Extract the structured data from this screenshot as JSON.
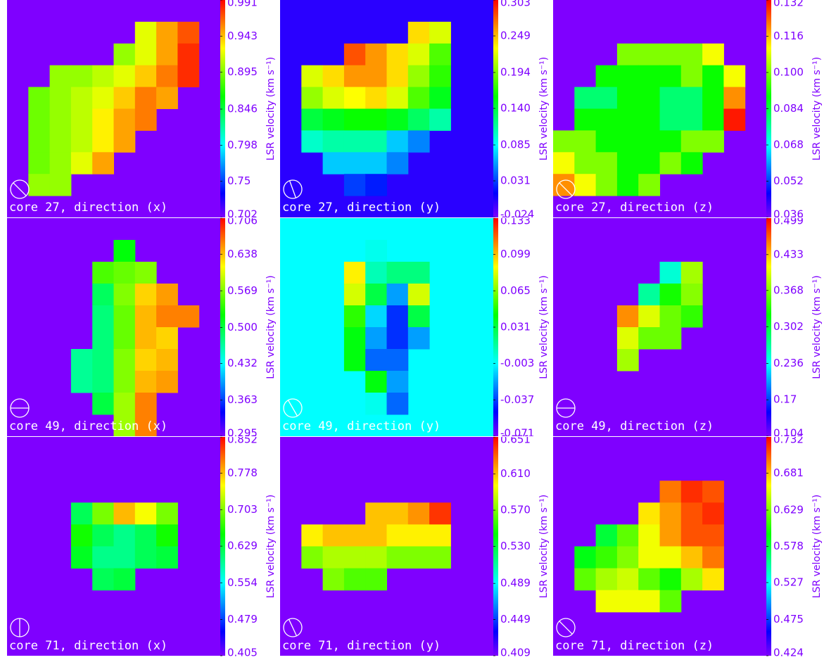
{
  "chart_data": [
    {
      "type": "heatmap",
      "title": "core 27, direction (x)",
      "colorbar_label": "LSR velocity (km s⁻¹)",
      "background": "#7f00ff",
      "vlim": [
        0.702,
        0.991
      ],
      "vticks": [
        0.702,
        0.75,
        0.798,
        0.846,
        0.895,
        0.943,
        0.991
      ],
      "z": [
        [
          null,
          null,
          null,
          null,
          null,
          null,
          null,
          null,
          null,
          null
        ],
        [
          null,
          null,
          null,
          null,
          null,
          null,
          0.92,
          0.95,
          0.97,
          null
        ],
        [
          null,
          null,
          null,
          null,
          null,
          0.9,
          0.92,
          0.95,
          0.98,
          null
        ],
        [
          null,
          null,
          0.9,
          0.9,
          0.91,
          0.92,
          0.94,
          0.96,
          0.98,
          null
        ],
        [
          null,
          0.89,
          0.9,
          0.91,
          0.92,
          0.94,
          0.96,
          0.95,
          null,
          null
        ],
        [
          null,
          0.89,
          0.9,
          0.91,
          0.93,
          0.95,
          0.96,
          null,
          null,
          null
        ],
        [
          null,
          0.89,
          0.9,
          0.91,
          0.93,
          0.95,
          null,
          null,
          null,
          null
        ],
        [
          null,
          0.89,
          0.9,
          0.92,
          0.95,
          null,
          null,
          null,
          null,
          null
        ],
        [
          null,
          0.9,
          0.9,
          null,
          null,
          null,
          null,
          null,
          null,
          null
        ],
        [
          null,
          null,
          null,
          null,
          null,
          null,
          null,
          null,
          null,
          null
        ]
      ]
    },
    {
      "type": "heatmap",
      "title": "core 27, direction (y)",
      "colorbar_label": "LSR velocity (km s⁻¹)",
      "background": "#2a00ff",
      "vlim": [
        -0.024,
        0.303
      ],
      "vticks": [
        -0.024,
        0.031,
        0.085,
        {
          "value": 0.14,
          "label": "0.140"
        },
        0.194,
        0.249,
        0.303
      ],
      "z": [
        [
          null,
          null,
          null,
          null,
          null,
          null,
          null,
          null,
          null,
          null
        ],
        [
          null,
          null,
          null,
          null,
          null,
          null,
          0.24,
          0.22,
          null,
          null
        ],
        [
          null,
          null,
          null,
          0.28,
          0.26,
          0.24,
          0.22,
          0.18,
          null,
          null
        ],
        [
          null,
          0.22,
          0.24,
          0.26,
          0.26,
          0.24,
          0.2,
          0.17,
          null,
          null
        ],
        [
          null,
          0.2,
          0.22,
          0.23,
          0.24,
          0.22,
          0.18,
          0.15,
          null,
          null
        ],
        [
          null,
          0.14,
          0.15,
          0.16,
          0.16,
          0.15,
          0.13,
          0.11,
          null,
          null
        ],
        [
          null,
          0.1,
          0.11,
          0.11,
          0.11,
          0.07,
          0.05,
          null,
          null,
          null
        ],
        [
          null,
          null,
          0.07,
          0.07,
          0.07,
          0.05,
          null,
          null,
          null,
          null
        ],
        [
          null,
          null,
          null,
          0.03,
          0.02,
          null,
          null,
          null,
          null,
          null
        ],
        [
          null,
          null,
          null,
          null,
          null,
          null,
          null,
          null,
          null,
          null
        ]
      ]
    },
    {
      "type": "heatmap",
      "title": "core 27, direction (z)",
      "colorbar_label": "LSR velocity (km s⁻¹)",
      "background": "#7f00ff",
      "vlim": [
        0.036,
        0.132
      ],
      "vticks": [
        0.036,
        0.052,
        0.068,
        0.084,
        {
          "value": 0.1,
          "label": "0.100"
        },
        0.116,
        0.132
      ],
      "z": [
        [
          null,
          null,
          null,
          null,
          null,
          null,
          null,
          null,
          null,
          null
        ],
        [
          null,
          null,
          null,
          null,
          null,
          null,
          null,
          null,
          null,
          null
        ],
        [
          null,
          null,
          null,
          0.1,
          0.1,
          0.1,
          0.1,
          0.11,
          null,
          null
        ],
        [
          null,
          null,
          0.09,
          0.09,
          0.09,
          0.09,
          0.1,
          0.09,
          0.11,
          null
        ],
        [
          null,
          0.08,
          0.08,
          0.09,
          0.09,
          0.08,
          0.08,
          0.09,
          0.12,
          null
        ],
        [
          null,
          0.09,
          0.09,
          0.09,
          0.09,
          0.08,
          0.08,
          0.09,
          0.13,
          null
        ],
        [
          0.1,
          0.1,
          0.09,
          0.09,
          0.09,
          0.09,
          0.1,
          0.1,
          null,
          null
        ],
        [
          0.11,
          0.1,
          0.1,
          0.09,
          0.09,
          0.1,
          0.09,
          null,
          null,
          null
        ],
        [
          0.12,
          0.11,
          0.1,
          0.09,
          0.1,
          null,
          null,
          null,
          null,
          null
        ],
        [
          null,
          null,
          null,
          null,
          null,
          null,
          null,
          null,
          null,
          null
        ]
      ]
    },
    {
      "type": "heatmap",
      "title": "core 49, direction (x)",
      "colorbar_label": "LSR velocity (km s⁻¹)",
      "background": "#7f00ff",
      "vlim": [
        0.295,
        0.706
      ],
      "vticks": [
        0.295,
        0.363,
        0.432,
        {
          "value": 0.5,
          "label": "0.500"
        },
        0.569,
        0.638,
        0.706
      ],
      "z": [
        [
          null,
          null,
          null,
          null,
          null,
          null,
          null,
          null,
          null,
          null
        ],
        [
          null,
          null,
          null,
          null,
          null,
          0.52,
          null,
          null,
          null,
          null
        ],
        [
          null,
          null,
          null,
          null,
          0.55,
          0.56,
          0.57,
          null,
          null,
          null
        ],
        [
          null,
          null,
          null,
          null,
          0.49,
          0.57,
          0.63,
          0.65,
          null,
          null
        ],
        [
          null,
          null,
          null,
          null,
          0.48,
          0.56,
          0.64,
          0.66,
          0.66,
          null
        ],
        [
          null,
          null,
          null,
          null,
          0.48,
          0.56,
          0.64,
          0.63,
          null,
          null
        ],
        [
          null,
          null,
          null,
          0.47,
          0.48,
          0.57,
          0.63,
          0.64,
          null,
          null
        ],
        [
          null,
          null,
          null,
          0.47,
          0.48,
          0.57,
          0.64,
          0.65,
          null,
          null
        ],
        [
          null,
          null,
          null,
          null,
          0.5,
          0.58,
          0.66,
          null,
          null,
          null
        ],
        [
          null,
          null,
          null,
          null,
          null,
          0.58,
          0.66,
          null,
          null,
          null
        ]
      ]
    },
    {
      "type": "heatmap",
      "title": "core 49, direction (y)",
      "colorbar_label": "LSR velocity (km s⁻¹)",
      "background": "#00ffff",
      "vlim": [
        -0.071,
        0.133
      ],
      "vticks": [
        -0.071,
        -0.037,
        -0.003,
        0.031,
        0.065,
        0.099,
        0.133
      ],
      "z": [
        [
          null,
          null,
          null,
          null,
          null,
          null,
          null,
          null,
          null,
          null
        ],
        [
          null,
          null,
          null,
          null,
          0.0,
          null,
          null,
          null,
          null,
          null
        ],
        [
          null,
          null,
          null,
          0.09,
          0.01,
          0.02,
          0.02,
          null,
          null,
          null
        ],
        [
          null,
          null,
          null,
          0.08,
          0.03,
          -0.02,
          0.08,
          null,
          null,
          null
        ],
        [
          null,
          null,
          null,
          0.05,
          -0.01,
          -0.04,
          0.03,
          null,
          null,
          null
        ],
        [
          null,
          null,
          null,
          0.04,
          -0.02,
          -0.04,
          -0.02,
          null,
          null,
          null
        ],
        [
          null,
          null,
          null,
          0.04,
          -0.03,
          -0.03,
          null,
          null,
          null,
          null
        ],
        [
          null,
          null,
          null,
          null,
          0.04,
          -0.02,
          null,
          null,
          null,
          null
        ],
        [
          null,
          null,
          null,
          null,
          0.0,
          -0.03,
          null,
          null,
          null,
          null
        ],
        [
          null,
          null,
          null,
          null,
          null,
          null,
          null,
          null,
          null,
          null
        ]
      ]
    },
    {
      "type": "heatmap",
      "title": "core 49, direction (z)",
      "colorbar_label": "LSR velocity (km s⁻¹)",
      "background": "#7f00ff",
      "vlim": [
        0.104,
        0.499
      ],
      "vticks": [
        0.104,
        0.17,
        0.236,
        0.302,
        0.368,
        0.433,
        0.499
      ],
      "z": [
        [
          null,
          null,
          null,
          null,
          null,
          null,
          null,
          null,
          null,
          null
        ],
        [
          null,
          null,
          null,
          null,
          null,
          null,
          null,
          null,
          null,
          null
        ],
        [
          null,
          null,
          null,
          null,
          null,
          0.25,
          0.38,
          null,
          null,
          null
        ],
        [
          null,
          null,
          null,
          null,
          0.27,
          0.33,
          0.37,
          null,
          null,
          null
        ],
        [
          null,
          null,
          null,
          0.45,
          0.4,
          0.36,
          0.34,
          null,
          null,
          null
        ],
        [
          null,
          null,
          null,
          0.4,
          0.36,
          0.36,
          null,
          null,
          null,
          null
        ],
        [
          null,
          null,
          null,
          0.38,
          null,
          null,
          null,
          null,
          null,
          null
        ],
        [
          null,
          null,
          null,
          null,
          null,
          null,
          null,
          null,
          null,
          null
        ],
        [
          null,
          null,
          null,
          null,
          null,
          null,
          null,
          null,
          null,
          null
        ],
        [
          null,
          null,
          null,
          null,
          null,
          null,
          null,
          null,
          null,
          null
        ]
      ]
    },
    {
      "type": "heatmap",
      "title": "core 71, direction (x)",
      "colorbar_label": "LSR velocity (km s⁻¹)",
      "background": "#7f00ff",
      "vlim": [
        0.405,
        0.852
      ],
      "vticks": [
        0.405,
        0.479,
        0.554,
        0.629,
        0.703,
        0.778,
        0.852
      ],
      "z": [
        [
          null,
          null,
          null,
          null,
          null,
          null,
          null,
          null,
          null,
          null
        ],
        [
          null,
          null,
          null,
          null,
          null,
          null,
          null,
          null,
          null,
          null
        ],
        [
          null,
          null,
          null,
          null,
          null,
          null,
          null,
          null,
          null,
          null
        ],
        [
          null,
          null,
          null,
          0.62,
          0.7,
          0.78,
          0.75,
          0.7,
          null,
          null
        ],
        [
          null,
          null,
          null,
          0.66,
          0.62,
          0.6,
          0.62,
          0.66,
          null,
          null
        ],
        [
          null,
          null,
          null,
          0.64,
          0.6,
          0.6,
          0.62,
          0.63,
          null,
          null
        ],
        [
          null,
          null,
          null,
          null,
          0.62,
          0.63,
          null,
          null,
          null,
          null
        ],
        [
          null,
          null,
          null,
          null,
          null,
          null,
          null,
          null,
          null,
          null
        ],
        [
          null,
          null,
          null,
          null,
          null,
          null,
          null,
          null,
          null,
          null
        ],
        [
          null,
          null,
          null,
          null,
          null,
          null,
          null,
          null,
          null,
          null
        ]
      ]
    },
    {
      "type": "heatmap",
      "title": "core 71, direction (y)",
      "colorbar_label": "LSR velocity (km s⁻¹)",
      "background": "#7f00ff",
      "vlim": [
        0.409,
        0.651
      ],
      "vticks": [
        0.409,
        0.449,
        0.489,
        {
          "value": 0.53,
          "label": "0.530"
        },
        {
          "value": 0.57,
          "label": "0.570"
        },
        {
          "value": 0.61,
          "label": "0.610"
        },
        0.651
      ],
      "z": [
        [
          null,
          null,
          null,
          null,
          null,
          null,
          null,
          null,
          null,
          null
        ],
        [
          null,
          null,
          null,
          null,
          null,
          null,
          null,
          null,
          null,
          null
        ],
        [
          null,
          null,
          null,
          null,
          null,
          null,
          null,
          null,
          null,
          null
        ],
        [
          null,
          null,
          null,
          null,
          0.61,
          0.61,
          0.62,
          0.64,
          null,
          null
        ],
        [
          null,
          0.6,
          0.61,
          0.61,
          0.61,
          0.6,
          0.6,
          0.6,
          null,
          null
        ],
        [
          null,
          0.57,
          0.58,
          0.58,
          0.58,
          0.57,
          0.57,
          0.57,
          null,
          null
        ],
        [
          null,
          null,
          0.57,
          0.56,
          0.56,
          null,
          null,
          null,
          null,
          null
        ],
        [
          null,
          null,
          null,
          null,
          null,
          null,
          null,
          null,
          null,
          null
        ],
        [
          null,
          null,
          null,
          null,
          null,
          null,
          null,
          null,
          null,
          null
        ],
        [
          null,
          null,
          null,
          null,
          null,
          null,
          null,
          null,
          null,
          null
        ]
      ]
    },
    {
      "type": "heatmap",
      "title": "core 71, direction (z)",
      "colorbar_label": "LSR velocity (km s⁻¹)",
      "background": "#7f00ff",
      "vlim": [
        0.424,
        0.732
      ],
      "vticks": [
        0.424,
        0.475,
        0.527,
        0.578,
        0.629,
        0.681,
        0.732
      ],
      "z": [
        [
          null,
          null,
          null,
          null,
          null,
          null,
          null,
          null,
          null,
          null
        ],
        [
          null,
          null,
          null,
          null,
          null,
          null,
          null,
          null,
          null,
          null
        ],
        [
          null,
          null,
          null,
          null,
          null,
          0.7,
          0.72,
          0.71,
          null,
          null
        ],
        [
          null,
          null,
          null,
          null,
          0.67,
          0.69,
          0.71,
          0.72,
          null,
          null
        ],
        [
          null,
          null,
          0.58,
          0.62,
          0.66,
          0.69,
          0.71,
          0.71,
          null,
          null
        ],
        [
          null,
          0.59,
          0.61,
          0.63,
          0.66,
          0.66,
          0.68,
          0.7,
          null,
          null
        ],
        [
          null,
          0.62,
          0.64,
          0.65,
          0.62,
          0.6,
          0.64,
          0.67,
          null,
          null
        ],
        [
          null,
          null,
          0.66,
          0.66,
          0.66,
          0.62,
          null,
          null,
          null,
          null
        ],
        [
          null,
          null,
          null,
          null,
          null,
          null,
          null,
          null,
          null,
          null
        ],
        [
          null,
          null,
          null,
          null,
          null,
          null,
          null,
          null,
          null,
          null
        ]
      ]
    }
  ]
}
